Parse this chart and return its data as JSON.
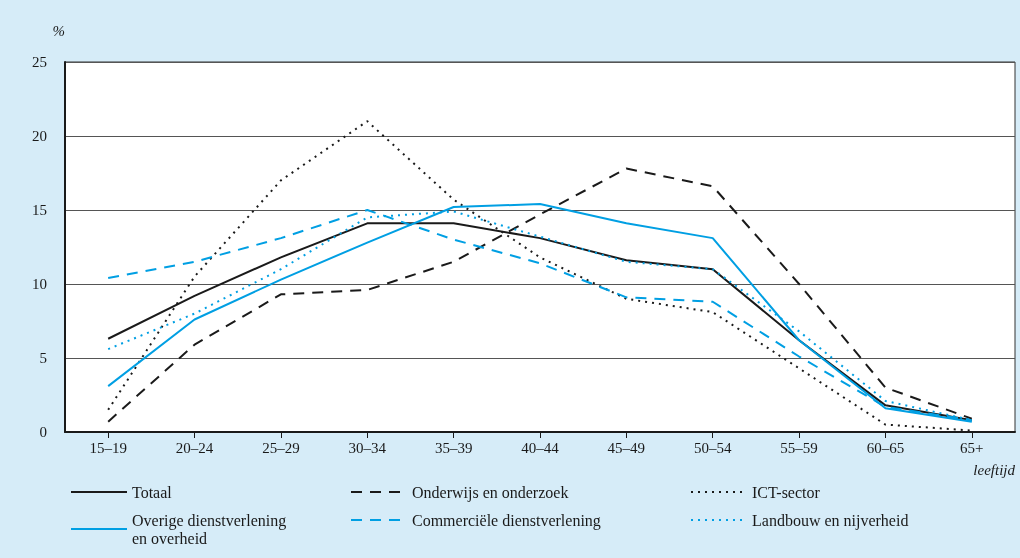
{
  "chart_data": {
    "type": "line",
    "ylabel": "%",
    "xlabel": "leeftijd",
    "categories": [
      "15–19",
      "20–24",
      "25–29",
      "30–34",
      "35–39",
      "40–44",
      "45–49",
      "50–54",
      "55–59",
      "60–65",
      "65+"
    ],
    "series": [
      {
        "name": "Totaal",
        "color": "#1a1a1a",
        "line_style": "solid",
        "values": [
          6.3,
          9.2,
          11.8,
          14.1,
          14.1,
          13.1,
          11.6,
          11.0,
          6.2,
          1.8,
          0.8
        ]
      },
      {
        "name": "Onderwijs en onderzoek",
        "color": "#1a1a1a",
        "line_style": "dashed",
        "values": [
          0.7,
          5.9,
          9.3,
          9.6,
          11.5,
          14.7,
          17.8,
          16.6,
          10.0,
          3.0,
          0.9
        ]
      },
      {
        "name": "ICT-sector",
        "color": "#1a1a1a",
        "line_style": "dotted",
        "values": [
          1.5,
          10.5,
          17.0,
          21.0,
          15.7,
          11.8,
          9.0,
          8.1,
          4.3,
          0.5,
          0.1
        ]
      },
      {
        "name": "Overige dienstverlening en overheid",
        "color": "#009fe3",
        "line_style": "solid",
        "values": [
          3.1,
          7.6,
          10.3,
          12.8,
          15.2,
          15.4,
          14.1,
          13.1,
          6.2,
          1.6,
          0.7
        ]
      },
      {
        "name": "Commerciële dienstverlening",
        "color": "#009fe3",
        "line_style": "dashed",
        "values": [
          10.4,
          11.5,
          13.1,
          15.0,
          13.0,
          11.4,
          9.1,
          8.8,
          5.1,
          1.7,
          0.8
        ]
      },
      {
        "name": "Landbouw en nijverheid",
        "color": "#009fe3",
        "line_style": "dotted",
        "values": [
          5.6,
          8.0,
          11.0,
          14.5,
          14.9,
          13.2,
          11.5,
          11.0,
          6.8,
          2.1,
          0.8
        ]
      }
    ],
    "ylim": [
      0,
      25
    ],
    "yticks": [
      0,
      5,
      10,
      15,
      20,
      25
    ],
    "grid": "y",
    "legend": "bottom",
    "marker": "none"
  }
}
